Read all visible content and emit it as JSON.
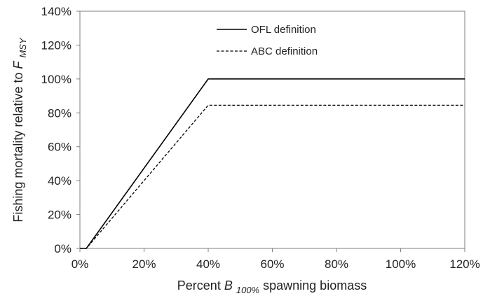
{
  "chart_data": {
    "type": "line",
    "xlim": [
      0,
      120
    ],
    "ylim": [
      0,
      140
    ],
    "x_ticks": [
      "0%",
      "20%",
      "40%",
      "60%",
      "80%",
      "100%",
      "120%"
    ],
    "y_ticks": [
      "0%",
      "20%",
      "40%",
      "60%",
      "80%",
      "100%",
      "120%",
      "140%"
    ],
    "xlabel": {
      "prefix": "Percent ",
      "symbol": "B",
      "subscript": "100%",
      "suffix": " spawning biomass"
    },
    "ylabel": {
      "prefix": "Fishing mortality relative to ",
      "symbol": "F",
      "subscript": "MSY"
    },
    "grid": false,
    "legend_position": "top-center",
    "series": [
      {
        "name": "OFL definition",
        "style": "solid",
        "color": "#000000",
        "points": [
          [
            0,
            0
          ],
          [
            2,
            0
          ],
          [
            40,
            100
          ],
          [
            120,
            100
          ]
        ]
      },
      {
        "name": "ABC definition",
        "style": "dashed",
        "color": "#000000",
        "points": [
          [
            0,
            0
          ],
          [
            2,
            0
          ],
          [
            40,
            84.5
          ],
          [
            120,
            84.5
          ]
        ]
      }
    ]
  }
}
